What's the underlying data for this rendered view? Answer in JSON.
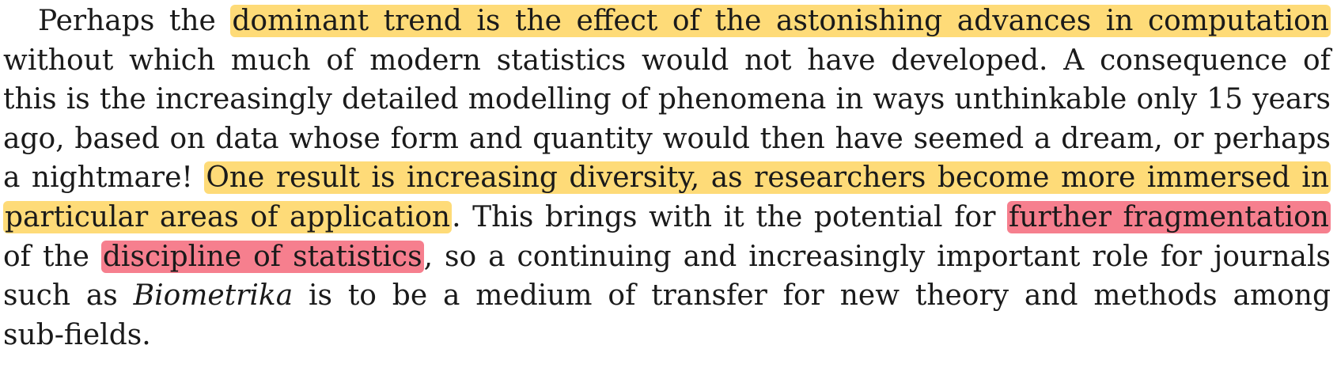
{
  "paragraph": {
    "lines": [
      {
        "indent": true,
        "segments": [
          {
            "text": "Perhaps the ",
            "style": "plain"
          },
          {
            "text": "dominant trend is the effect of the astonishing advances in computation",
            "style": "highlight-yellow"
          }
        ]
      },
      {
        "segments": [
          {
            "text": "without which much of modern statistics would not have developed. A consequence of",
            "style": "plain"
          }
        ]
      },
      {
        "segments": [
          {
            "text": "this is the increasingly detailed modelling of phenomena in ways unthinkable only 15 years",
            "style": "plain"
          }
        ]
      },
      {
        "segments": [
          {
            "text": "ago, based on data whose form and quantity would then have seemed a dream, or perhaps",
            "style": "plain"
          }
        ]
      },
      {
        "segments": [
          {
            "text": "a nightmare! ",
            "style": "plain"
          },
          {
            "text": "One result is increasing diversity, as researchers become more immersed in",
            "style": "highlight-yellow"
          }
        ]
      },
      {
        "segments": [
          {
            "text": "particular areas of application",
            "style": "highlight-yellow"
          },
          {
            "text": ". This brings with it the potential for ",
            "style": "plain"
          },
          {
            "text": "further fragmentation",
            "style": "highlight-red"
          }
        ]
      },
      {
        "segments": [
          {
            "text": "of the ",
            "style": "plain"
          },
          {
            "text": "discipline of statistics",
            "style": "highlight-red"
          },
          {
            "text": ", so a continuing and increasingly important role for journals",
            "style": "plain"
          }
        ]
      },
      {
        "segments": [
          {
            "text": "such as ",
            "style": "plain"
          },
          {
            "text": "Biometrika",
            "style": "italic"
          },
          {
            "text": " is to be a medium of transfer for new theory and methods among",
            "style": "plain"
          }
        ]
      },
      {
        "last": true,
        "segments": [
          {
            "text": "sub-fields.",
            "style": "plain"
          }
        ]
      }
    ]
  },
  "highlight_colors": {
    "yellow": "#fdcd44",
    "red": "#f34d63"
  }
}
